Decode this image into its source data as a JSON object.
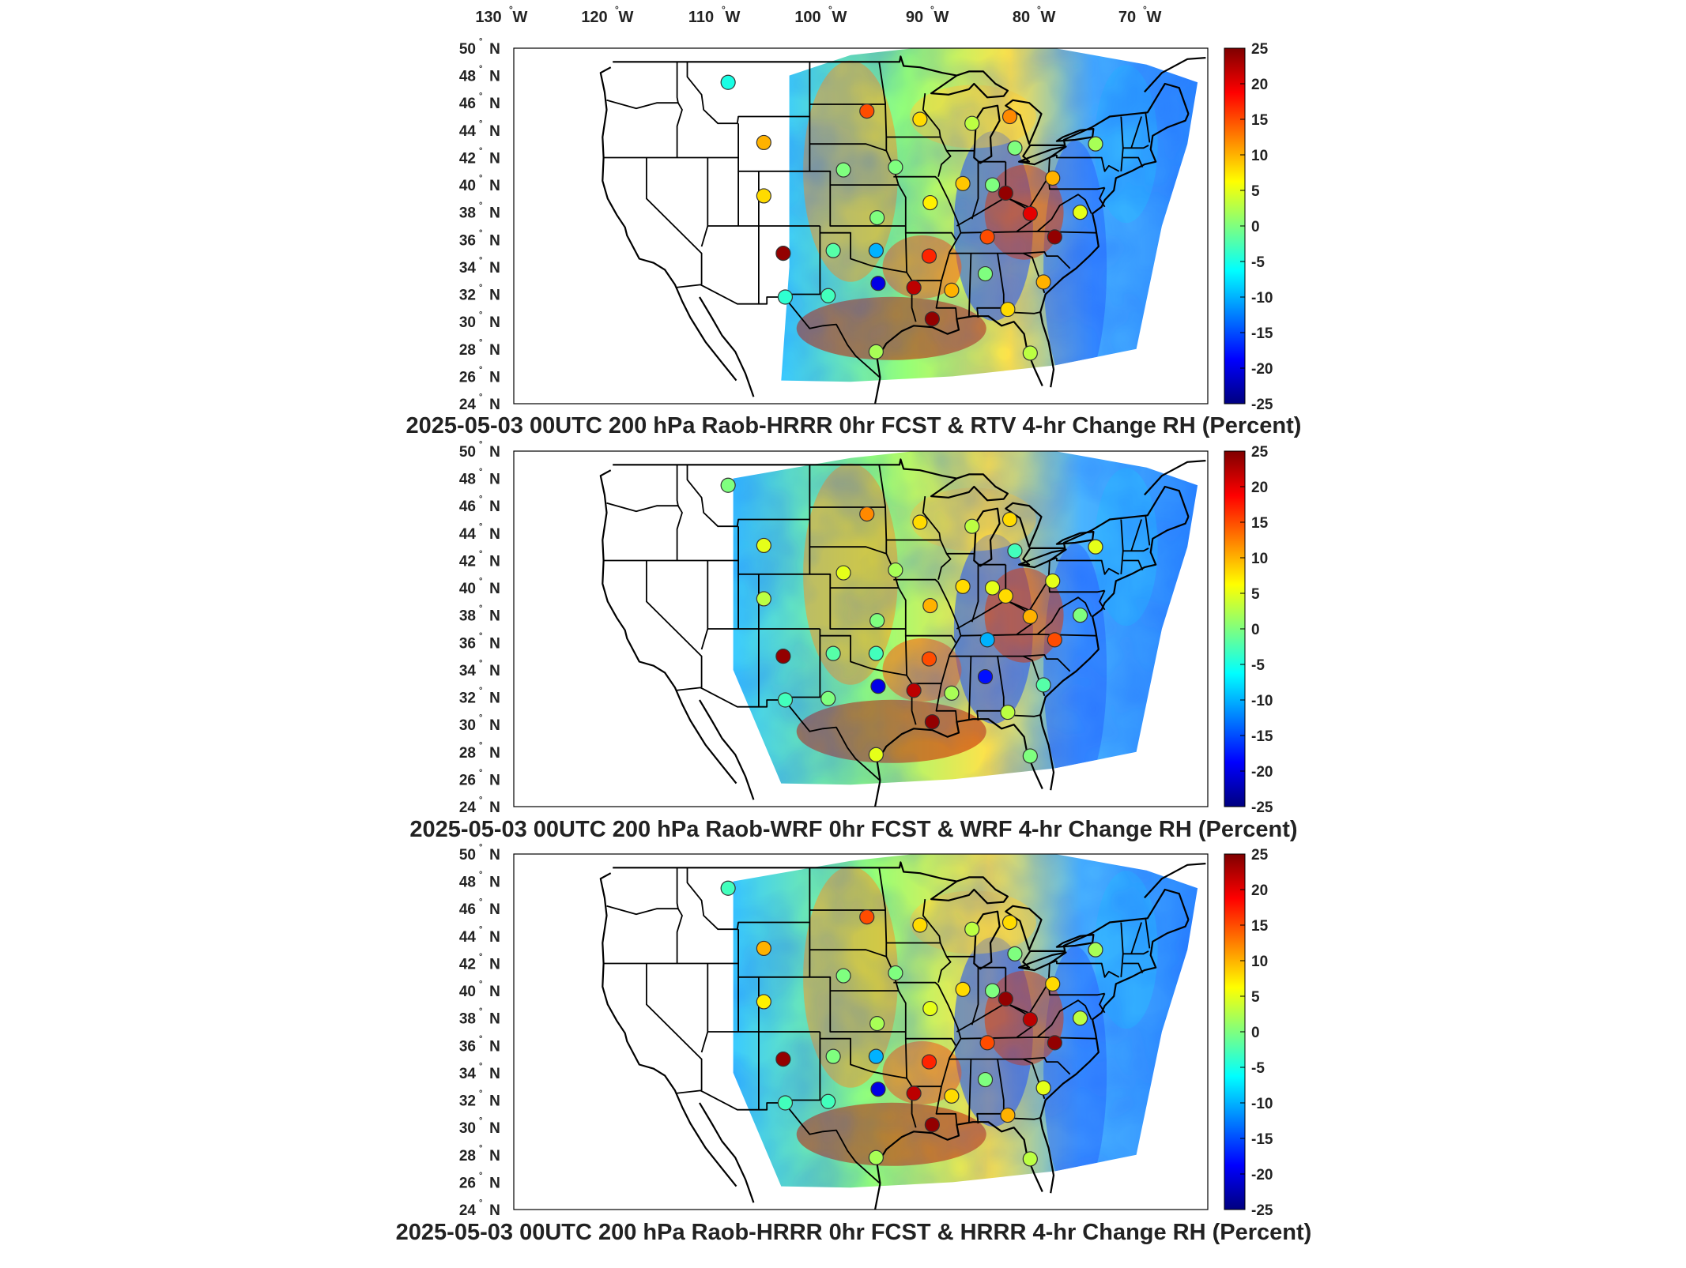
{
  "figure": {
    "longitude_labels": [
      {
        "value": "130",
        "hemi": "W"
      },
      {
        "value": "120",
        "hemi": "W"
      },
      {
        "value": "110",
        "hemi": "W"
      },
      {
        "value": "100",
        "hemi": "W"
      },
      {
        "value": "90",
        "hemi": "W"
      },
      {
        "value": "80",
        "hemi": "W"
      },
      {
        "value": "70",
        "hemi": "W"
      }
    ],
    "latitude_labels": [
      "50",
      "48",
      "46",
      "44",
      "42",
      "40",
      "38",
      "36",
      "34",
      "32",
      "30",
      "28",
      "26",
      "24"
    ],
    "lat_hemi": "N",
    "colorbar": {
      "ticks": [
        "25",
        "20",
        "15",
        "10",
        "5",
        "0",
        "-5",
        "-10",
        "-15",
        "-20",
        "-25"
      ],
      "range": [
        -25,
        25
      ],
      "colors": [
        "#00007f",
        "#0000ff",
        "#007fff",
        "#00ffff",
        "#7fff7f",
        "#ffff00",
        "#ff7f00",
        "#ff0000",
        "#7f0000"
      ]
    },
    "panels": [
      {
        "title": "2025-05-03 00UTC 200 hPa Raob-HRRR 0hr FCST & RTV 4-hr Change RH (Percent)",
        "stations": [
          {
            "lon": -112,
            "lat": 47.5,
            "v": -5
          },
          {
            "lon": -108.5,
            "lat": 43.1,
            "v": 10
          },
          {
            "lon": -108.5,
            "lat": 39.2,
            "v": 8
          },
          {
            "lon": -106.6,
            "lat": 35.0,
            "v": 24
          },
          {
            "lon": -106.4,
            "lat": 31.8,
            "v": -4
          },
          {
            "lon": -101.7,
            "lat": 35.2,
            "v": -2
          },
          {
            "lon": -102.2,
            "lat": 31.9,
            "v": -3
          },
          {
            "lon": -98.4,
            "lat": 45.4,
            "v": 15
          },
          {
            "lon": -100.7,
            "lat": 41.1,
            "v": 0
          },
          {
            "lon": -97.4,
            "lat": 37.6,
            "v": 0
          },
          {
            "lon": -95.6,
            "lat": 41.3,
            "v": 0
          },
          {
            "lon": -97.5,
            "lat": 35.2,
            "v": -10
          },
          {
            "lon": -97.3,
            "lat": 32.8,
            "v": -20
          },
          {
            "lon": -97.5,
            "lat": 27.8,
            "v": 2
          },
          {
            "lon": -93.2,
            "lat": 44.8,
            "v": 8
          },
          {
            "lon": -92.2,
            "lat": 38.7,
            "v": 7
          },
          {
            "lon": -92.3,
            "lat": 34.8,
            "v": 17
          },
          {
            "lon": -93.8,
            "lat": 32.5,
            "v": 22
          },
          {
            "lon": -92.0,
            "lat": 30.2,
            "v": 24
          },
          {
            "lon": -89.0,
            "lat": 40.1,
            "v": 9
          },
          {
            "lon": -88.1,
            "lat": 44.5,
            "v": 3
          },
          {
            "lon": -90.1,
            "lat": 32.3,
            "v": 10
          },
          {
            "lon": -86.6,
            "lat": 36.2,
            "v": 15
          },
          {
            "lon": -86.8,
            "lat": 33.5,
            "v": 0
          },
          {
            "lon": -86.1,
            "lat": 40.0,
            "v": 0
          },
          {
            "lon": -84.8,
            "lat": 39.4,
            "v": 24
          },
          {
            "lon": -84.4,
            "lat": 45.0,
            "v": 12
          },
          {
            "lon": -83.9,
            "lat": 42.7,
            "v": 0
          },
          {
            "lon": -80.2,
            "lat": 40.5,
            "v": 10
          },
          {
            "lon": -82.4,
            "lat": 37.9,
            "v": 20
          },
          {
            "lon": -80.0,
            "lat": 36.2,
            "v": 24
          },
          {
            "lon": -77.5,
            "lat": 38.0,
            "v": 5
          },
          {
            "lon": -81.1,
            "lat": 32.9,
            "v": 10
          },
          {
            "lon": -84.6,
            "lat": 30.9,
            "v": 8
          },
          {
            "lon": -82.4,
            "lat": 27.7,
            "v": 3
          },
          {
            "lon": -76.0,
            "lat": 43.0,
            "v": 2
          }
        ]
      },
      {
        "title": "2025-05-03 00UTC 200 hPa Raob-WRF 0hr FCST & WRF 4-hr Change RH (Percent)",
        "stations": [
          {
            "lon": -112,
            "lat": 47.5,
            "v": 0
          },
          {
            "lon": -108.5,
            "lat": 43.1,
            "v": 5
          },
          {
            "lon": -108.5,
            "lat": 39.2,
            "v": 3
          },
          {
            "lon": -106.6,
            "lat": 35.0,
            "v": 24
          },
          {
            "lon": -106.4,
            "lat": 31.8,
            "v": -3
          },
          {
            "lon": -101.7,
            "lat": 35.2,
            "v": -2
          },
          {
            "lon": -102.2,
            "lat": 31.9,
            "v": 0
          },
          {
            "lon": -98.4,
            "lat": 45.4,
            "v": 12
          },
          {
            "lon": -100.7,
            "lat": 41.1,
            "v": 5
          },
          {
            "lon": -97.4,
            "lat": 37.6,
            "v": 0
          },
          {
            "lon": -95.6,
            "lat": 41.3,
            "v": 2
          },
          {
            "lon": -97.5,
            "lat": 35.2,
            "v": -3
          },
          {
            "lon": -97.3,
            "lat": 32.8,
            "v": -20
          },
          {
            "lon": -97.5,
            "lat": 27.8,
            "v": 5
          },
          {
            "lon": -93.2,
            "lat": 44.8,
            "v": 8
          },
          {
            "lon": -92.2,
            "lat": 38.7,
            "v": 10
          },
          {
            "lon": -92.3,
            "lat": 34.8,
            "v": 15
          },
          {
            "lon": -93.8,
            "lat": 32.5,
            "v": 22
          },
          {
            "lon": -92.0,
            "lat": 30.2,
            "v": 24
          },
          {
            "lon": -89.0,
            "lat": 40.1,
            "v": 8
          },
          {
            "lon": -88.1,
            "lat": 44.5,
            "v": 3
          },
          {
            "lon": -90.1,
            "lat": 32.3,
            "v": 2
          },
          {
            "lon": -86.6,
            "lat": 36.2,
            "v": -10
          },
          {
            "lon": -86.8,
            "lat": 33.5,
            "v": -18
          },
          {
            "lon": -86.1,
            "lat": 40.0,
            "v": 5
          },
          {
            "lon": -84.8,
            "lat": 39.4,
            "v": 8
          },
          {
            "lon": -84.4,
            "lat": 45.0,
            "v": 8
          },
          {
            "lon": -83.9,
            "lat": 42.7,
            "v": -3
          },
          {
            "lon": -80.2,
            "lat": 40.5,
            "v": 5
          },
          {
            "lon": -82.4,
            "lat": 37.9,
            "v": 10
          },
          {
            "lon": -80.0,
            "lat": 36.2,
            "v": 15
          },
          {
            "lon": -77.5,
            "lat": 38.0,
            "v": 0
          },
          {
            "lon": -81.1,
            "lat": 32.9,
            "v": -2
          },
          {
            "lon": -84.6,
            "lat": 30.9,
            "v": 3
          },
          {
            "lon": -82.4,
            "lat": 27.7,
            "v": 0
          },
          {
            "lon": -76.0,
            "lat": 43.0,
            "v": 5
          }
        ]
      },
      {
        "title": "2025-05-03 00UTC 200 hPa Raob-HRRR 0hr FCST & HRRR 4-hr Change RH (Percent)",
        "stations": [
          {
            "lon": -112,
            "lat": 47.5,
            "v": -3
          },
          {
            "lon": -108.5,
            "lat": 43.1,
            "v": 10
          },
          {
            "lon": -108.5,
            "lat": 39.2,
            "v": 7
          },
          {
            "lon": -106.6,
            "lat": 35.0,
            "v": 24
          },
          {
            "lon": -106.4,
            "lat": 31.8,
            "v": -3
          },
          {
            "lon": -101.7,
            "lat": 35.2,
            "v": 0
          },
          {
            "lon": -102.2,
            "lat": 31.9,
            "v": -3
          },
          {
            "lon": -98.4,
            "lat": 45.4,
            "v": 15
          },
          {
            "lon": -100.7,
            "lat": 41.1,
            "v": 0
          },
          {
            "lon": -97.4,
            "lat": 37.6,
            "v": 2
          },
          {
            "lon": -95.6,
            "lat": 41.3,
            "v": 0
          },
          {
            "lon": -97.5,
            "lat": 35.2,
            "v": -10
          },
          {
            "lon": -97.3,
            "lat": 32.8,
            "v": -20
          },
          {
            "lon": -97.5,
            "lat": 27.8,
            "v": 2
          },
          {
            "lon": -93.2,
            "lat": 44.8,
            "v": 8
          },
          {
            "lon": -92.2,
            "lat": 38.7,
            "v": 5
          },
          {
            "lon": -92.3,
            "lat": 34.8,
            "v": 17
          },
          {
            "lon": -93.8,
            "lat": 32.5,
            "v": 22
          },
          {
            "lon": -92.0,
            "lat": 30.2,
            "v": 24
          },
          {
            "lon": -89.0,
            "lat": 40.1,
            "v": 8
          },
          {
            "lon": -88.1,
            "lat": 44.5,
            "v": 3
          },
          {
            "lon": -90.1,
            "lat": 32.3,
            "v": 8
          },
          {
            "lon": -86.6,
            "lat": 36.2,
            "v": 15
          },
          {
            "lon": -86.8,
            "lat": 33.5,
            "v": 0
          },
          {
            "lon": -86.1,
            "lat": 40.0,
            "v": 0
          },
          {
            "lon": -84.8,
            "lat": 39.4,
            "v": 24
          },
          {
            "lon": -84.4,
            "lat": 45.0,
            "v": 8
          },
          {
            "lon": -83.9,
            "lat": 42.7,
            "v": 0
          },
          {
            "lon": -80.2,
            "lat": 40.5,
            "v": 8
          },
          {
            "lon": -82.4,
            "lat": 37.9,
            "v": 22
          },
          {
            "lon": -80.0,
            "lat": 36.2,
            "v": 24
          },
          {
            "lon": -77.5,
            "lat": 38.0,
            "v": 3
          },
          {
            "lon": -81.1,
            "lat": 32.9,
            "v": 5
          },
          {
            "lon": -84.6,
            "lat": 30.9,
            "v": 10
          },
          {
            "lon": -82.4,
            "lat": 27.7,
            "v": 3
          },
          {
            "lon": -76.0,
            "lat": 43.0,
            "v": 2
          }
        ]
      }
    ]
  }
}
